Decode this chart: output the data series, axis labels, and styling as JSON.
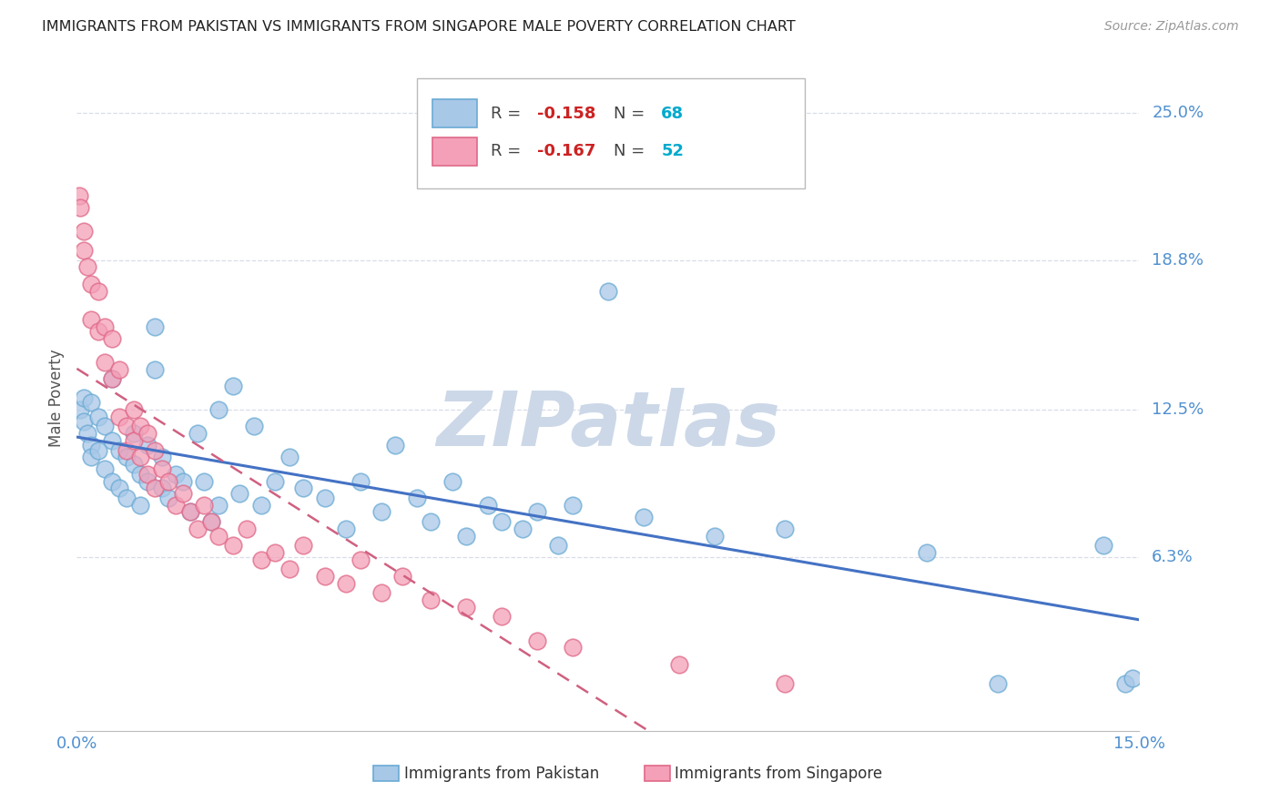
{
  "title": "IMMIGRANTS FROM PAKISTAN VS IMMIGRANTS FROM SINGAPORE MALE POVERTY CORRELATION CHART",
  "source": "Source: ZipAtlas.com",
  "ylabel": "Male Poverty",
  "y_ticks": [
    0.063,
    0.125,
    0.188,
    0.25
  ],
  "y_tick_labels": [
    "6.3%",
    "12.5%",
    "18.8%",
    "25.0%"
  ],
  "x_min": 0.0,
  "x_max": 0.15,
  "y_min": -0.01,
  "y_max": 0.27,
  "pakistan_color": "#a8c8e8",
  "pakistan_edge": "#6aaad4",
  "singapore_color": "#f4a0b8",
  "singapore_edge": "#e06888",
  "trend_pakistan_color": "#4472c4",
  "trend_singapore_color": "#d06080",
  "legend_pakistan_label": "Immigrants from Pakistan",
  "legend_singapore_label": "Immigrants from Singapore",
  "R_pakistan": -0.158,
  "N_pakistan": 68,
  "R_singapore": -0.167,
  "N_singapore": 52,
  "pakistan_x": [
    0.0005,
    0.001,
    0.001,
    0.0015,
    0.002,
    0.002,
    0.002,
    0.003,
    0.003,
    0.004,
    0.004,
    0.005,
    0.005,
    0.005,
    0.006,
    0.006,
    0.007,
    0.007,
    0.008,
    0.008,
    0.009,
    0.009,
    0.01,
    0.01,
    0.011,
    0.011,
    0.012,
    0.012,
    0.013,
    0.014,
    0.015,
    0.016,
    0.017,
    0.018,
    0.019,
    0.02,
    0.02,
    0.022,
    0.023,
    0.025,
    0.026,
    0.028,
    0.03,
    0.032,
    0.035,
    0.038,
    0.04,
    0.043,
    0.045,
    0.048,
    0.05,
    0.053,
    0.055,
    0.058,
    0.06,
    0.063,
    0.065,
    0.068,
    0.07,
    0.075,
    0.08,
    0.09,
    0.1,
    0.12,
    0.13,
    0.145,
    0.148,
    0.149
  ],
  "pakistan_y": [
    0.125,
    0.13,
    0.12,
    0.115,
    0.11,
    0.105,
    0.128,
    0.122,
    0.108,
    0.118,
    0.1,
    0.112,
    0.095,
    0.138,
    0.108,
    0.092,
    0.105,
    0.088,
    0.102,
    0.115,
    0.098,
    0.085,
    0.11,
    0.095,
    0.142,
    0.16,
    0.092,
    0.105,
    0.088,
    0.098,
    0.095,
    0.082,
    0.115,
    0.095,
    0.078,
    0.085,
    0.125,
    0.135,
    0.09,
    0.118,
    0.085,
    0.095,
    0.105,
    0.092,
    0.088,
    0.075,
    0.095,
    0.082,
    0.11,
    0.088,
    0.078,
    0.095,
    0.072,
    0.085,
    0.078,
    0.075,
    0.082,
    0.068,
    0.085,
    0.175,
    0.08,
    0.072,
    0.075,
    0.065,
    0.01,
    0.068,
    0.01,
    0.012
  ],
  "singapore_x": [
    0.0003,
    0.0005,
    0.001,
    0.001,
    0.0015,
    0.002,
    0.002,
    0.003,
    0.003,
    0.004,
    0.004,
    0.005,
    0.005,
    0.006,
    0.006,
    0.007,
    0.007,
    0.008,
    0.008,
    0.009,
    0.009,
    0.01,
    0.01,
    0.011,
    0.011,
    0.012,
    0.013,
    0.014,
    0.015,
    0.016,
    0.017,
    0.018,
    0.019,
    0.02,
    0.022,
    0.024,
    0.026,
    0.028,
    0.03,
    0.032,
    0.035,
    0.038,
    0.04,
    0.043,
    0.046,
    0.05,
    0.055,
    0.06,
    0.065,
    0.07,
    0.085,
    0.1
  ],
  "singapore_y": [
    0.215,
    0.21,
    0.2,
    0.192,
    0.185,
    0.178,
    0.163,
    0.175,
    0.158,
    0.16,
    0.145,
    0.138,
    0.155,
    0.122,
    0.142,
    0.118,
    0.108,
    0.125,
    0.112,
    0.118,
    0.105,
    0.115,
    0.098,
    0.108,
    0.092,
    0.1,
    0.095,
    0.085,
    0.09,
    0.082,
    0.075,
    0.085,
    0.078,
    0.072,
    0.068,
    0.075,
    0.062,
    0.065,
    0.058,
    0.068,
    0.055,
    0.052,
    0.062,
    0.048,
    0.055,
    0.045,
    0.042,
    0.038,
    0.028,
    0.025,
    0.018,
    0.01
  ],
  "watermark": "ZIPatlas",
  "watermark_color": "#ccd8e8",
  "grid_color": "#d8dde8",
  "background_color": "#ffffff",
  "title_color": "#222222",
  "tick_label_color": "#5090d0"
}
